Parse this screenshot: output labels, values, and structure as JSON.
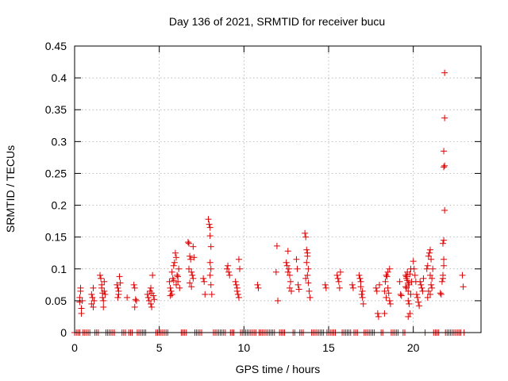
{
  "chart_data": {
    "type": "scatter",
    "title": "Day 136 of 2021, SRMTID for receiver bucu",
    "xlabel": "GPS time / hours",
    "ylabel": "SRMTID / TECUs",
    "xlim": [
      0,
      24
    ],
    "ylim": [
      0,
      0.45
    ],
    "xticks": [
      0,
      5,
      10,
      15,
      20
    ],
    "xtick_labels": [
      "0",
      "5",
      "10",
      "15",
      "20"
    ],
    "yticks": [
      0,
      0.05,
      0.1,
      0.15,
      0.2,
      0.25,
      0.3,
      0.35,
      0.4,
      0.45
    ],
    "ytick_labels": [
      "0",
      "0.05",
      "0.1",
      "0.15",
      "0.2",
      "0.25",
      "0.3",
      "0.35",
      "0.4",
      "0.45"
    ],
    "grid": true,
    "marker": "plus",
    "color": "#dd0000",
    "series": [
      {
        "name": "SRMTID",
        "points": [
          [
            0.3,
            0.048
          ],
          [
            0.3,
            0.055
          ],
          [
            0.35,
            0.065
          ],
          [
            0.35,
            0.07
          ],
          [
            0.4,
            0.038
          ],
          [
            0.4,
            0.03
          ],
          [
            0.45,
            0.05
          ],
          [
            1.0,
            0.06
          ],
          [
            1.0,
            0.045
          ],
          [
            1.05,
            0.055
          ],
          [
            1.1,
            0.07
          ],
          [
            1.1,
            0.04
          ],
          [
            1.15,
            0.05
          ],
          [
            1.5,
            0.09
          ],
          [
            1.55,
            0.085
          ],
          [
            1.6,
            0.07
          ],
          [
            1.6,
            0.075
          ],
          [
            1.65,
            0.062
          ],
          [
            1.65,
            0.055
          ],
          [
            1.7,
            0.05
          ],
          [
            1.7,
            0.04
          ],
          [
            1.75,
            0.065
          ],
          [
            1.8,
            0.06
          ],
          [
            1.75,
            0.08
          ],
          [
            2.5,
            0.075
          ],
          [
            2.55,
            0.07
          ],
          [
            2.6,
            0.06
          ],
          [
            2.65,
            0.088
          ],
          [
            2.6,
            0.065
          ],
          [
            2.7,
            0.078
          ],
          [
            2.55,
            0.055
          ],
          [
            3.1,
            0.055
          ],
          [
            3.5,
            0.075
          ],
          [
            3.55,
            0.07
          ],
          [
            3.6,
            0.052
          ],
          [
            3.65,
            0.05
          ],
          [
            3.55,
            0.04
          ],
          [
            4.3,
            0.06
          ],
          [
            4.35,
            0.055
          ],
          [
            4.4,
            0.05
          ],
          [
            4.45,
            0.065
          ],
          [
            4.5,
            0.07
          ],
          [
            4.55,
            0.04
          ],
          [
            4.6,
            0.09
          ],
          [
            4.5,
            0.045
          ],
          [
            4.65,
            0.058
          ],
          [
            4.7,
            0.052
          ],
          [
            4.55,
            0.062
          ],
          [
            5.6,
            0.08
          ],
          [
            5.65,
            0.07
          ],
          [
            5.7,
            0.065
          ],
          [
            5.75,
            0.095
          ],
          [
            5.8,
            0.085
          ],
          [
            5.85,
            0.105
          ],
          [
            5.9,
            0.11
          ],
          [
            5.95,
            0.125
          ],
          [
            6.0,
            0.118
          ],
          [
            6.05,
            0.09
          ],
          [
            6.1,
            0.08
          ],
          [
            6.15,
            0.1
          ],
          [
            5.65,
            0.058
          ],
          [
            5.75,
            0.06
          ],
          [
            6.0,
            0.075
          ],
          [
            6.1,
            0.088
          ],
          [
            6.2,
            0.07
          ],
          [
            5.85,
            0.082
          ],
          [
            6.7,
            0.142
          ],
          [
            6.75,
            0.14
          ],
          [
            6.8,
            0.12
          ],
          [
            6.85,
            0.115
          ],
          [
            6.9,
            0.095
          ],
          [
            6.95,
            0.09
          ],
          [
            7.0,
            0.135
          ],
          [
            7.05,
            0.118
          ],
          [
            6.8,
            0.078
          ],
          [
            6.9,
            0.072
          ],
          [
            7.0,
            0.085
          ],
          [
            6.75,
            0.1
          ],
          [
            7.6,
            0.085
          ],
          [
            7.65,
            0.08
          ],
          [
            7.7,
            0.06
          ],
          [
            7.9,
            0.178
          ],
          [
            7.95,
            0.17
          ],
          [
            8.0,
            0.165
          ],
          [
            8.0,
            0.152
          ],
          [
            8.05,
            0.135
          ],
          [
            8.0,
            0.11
          ],
          [
            8.05,
            0.1
          ],
          [
            8.0,
            0.09
          ],
          [
            8.05,
            0.075
          ],
          [
            8.1,
            0.06
          ],
          [
            9.0,
            0.1
          ],
          [
            9.05,
            0.105
          ],
          [
            9.1,
            0.095
          ],
          [
            9.15,
            0.09
          ],
          [
            9.5,
            0.08
          ],
          [
            9.55,
            0.075
          ],
          [
            9.6,
            0.065
          ],
          [
            9.65,
            0.06
          ],
          [
            9.7,
            0.115
          ],
          [
            9.75,
            0.1
          ],
          [
            9.6,
            0.07
          ],
          [
            9.7,
            0.055
          ],
          [
            10.8,
            0.075
          ],
          [
            10.85,
            0.07
          ],
          [
            11.9,
            0.095
          ],
          [
            11.95,
            0.136
          ],
          [
            12.0,
            0.05
          ],
          [
            12.5,
            0.11
          ],
          [
            12.55,
            0.105
          ],
          [
            12.6,
            0.128
          ],
          [
            12.65,
            0.1
          ],
          [
            12.7,
            0.09
          ],
          [
            12.75,
            0.08
          ],
          [
            12.6,
            0.095
          ],
          [
            12.7,
            0.07
          ],
          [
            12.8,
            0.065
          ],
          [
            13.1,
            0.115
          ],
          [
            13.15,
            0.1
          ],
          [
            13.2,
            0.075
          ],
          [
            13.25,
            0.068
          ],
          [
            13.6,
            0.156
          ],
          [
            13.65,
            0.15
          ],
          [
            13.7,
            0.13
          ],
          [
            13.75,
            0.125
          ],
          [
            13.7,
            0.11
          ],
          [
            13.8,
            0.1
          ],
          [
            13.75,
            0.09
          ],
          [
            13.8,
            0.078
          ],
          [
            13.85,
            0.065
          ],
          [
            13.9,
            0.055
          ],
          [
            13.65,
            0.085
          ],
          [
            13.75,
            0.12
          ],
          [
            14.8,
            0.075
          ],
          [
            14.85,
            0.07
          ],
          [
            15.5,
            0.09
          ],
          [
            15.55,
            0.085
          ],
          [
            15.6,
            0.08
          ],
          [
            15.65,
            0.07
          ],
          [
            15.7,
            0.095
          ],
          [
            16.4,
            0.075
          ],
          [
            16.45,
            0.07
          ],
          [
            16.8,
            0.09
          ],
          [
            16.85,
            0.085
          ],
          [
            16.9,
            0.08
          ],
          [
            16.95,
            0.06
          ],
          [
            17.0,
            0.055
          ],
          [
            17.05,
            0.045
          ],
          [
            16.9,
            0.072
          ],
          [
            17.0,
            0.065
          ],
          [
            17.8,
            0.07
          ],
          [
            17.85,
            0.065
          ],
          [
            17.9,
            0.03
          ],
          [
            17.95,
            0.025
          ],
          [
            18.0,
            0.075
          ],
          [
            18.3,
            0.065
          ],
          [
            18.35,
            0.08
          ],
          [
            18.4,
            0.09
          ],
          [
            18.45,
            0.088
          ],
          [
            18.5,
            0.07
          ],
          [
            18.55,
            0.062
          ],
          [
            18.6,
            0.05
          ],
          [
            18.65,
            0.045
          ],
          [
            18.5,
            0.095
          ],
          [
            18.4,
            0.055
          ],
          [
            18.3,
            0.03
          ],
          [
            18.6,
            0.1
          ],
          [
            19.2,
            0.08
          ],
          [
            19.25,
            0.06
          ],
          [
            19.3,
            0.058
          ],
          [
            19.55,
            0.09
          ],
          [
            19.6,
            0.085
          ],
          [
            19.65,
            0.082
          ],
          [
            19.7,
            0.078
          ],
          [
            19.75,
            0.075
          ],
          [
            19.6,
            0.07
          ],
          [
            19.7,
            0.065
          ],
          [
            19.8,
            0.092
          ],
          [
            19.85,
            0.1
          ],
          [
            19.65,
            0.095
          ],
          [
            19.7,
            0.05
          ],
          [
            19.75,
            0.045
          ],
          [
            19.8,
            0.03
          ],
          [
            19.7,
            0.025
          ],
          [
            19.6,
            0.088
          ],
          [
            19.9,
            0.08
          ],
          [
            19.55,
            0.072
          ],
          [
            19.85,
            0.06
          ],
          [
            20.0,
            0.112
          ],
          [
            20.05,
            0.1
          ],
          [
            20.1,
            0.09
          ],
          [
            20.15,
            0.08
          ],
          [
            20.2,
            0.06
          ],
          [
            20.25,
            0.055
          ],
          [
            20.3,
            0.048
          ],
          [
            20.35,
            0.042
          ],
          [
            20.4,
            0.08
          ],
          [
            20.45,
            0.075
          ],
          [
            20.5,
            0.07
          ],
          [
            20.55,
            0.065
          ],
          [
            20.6,
            0.085
          ],
          [
            20.8,
            0.1
          ],
          [
            20.85,
            0.105
          ],
          [
            20.9,
            0.12
          ],
          [
            20.95,
            0.125
          ],
          [
            21.0,
            0.13
          ],
          [
            21.05,
            0.115
          ],
          [
            21.0,
            0.09
          ],
          [
            21.05,
            0.075
          ],
          [
            21.1,
            0.07
          ],
          [
            21.0,
            0.06
          ],
          [
            20.9,
            0.065
          ],
          [
            20.85,
            0.055
          ],
          [
            21.1,
            0.085
          ],
          [
            21.15,
            0.1
          ],
          [
            21.6,
            0.062
          ],
          [
            21.65,
            0.06
          ],
          [
            21.7,
            0.08
          ],
          [
            21.75,
            0.085
          ],
          [
            21.75,
            0.09
          ],
          [
            21.8,
            0.105
          ],
          [
            21.8,
            0.115
          ],
          [
            21.75,
            0.14
          ],
          [
            21.8,
            0.145
          ],
          [
            21.85,
            0.192
          ],
          [
            21.8,
            0.26
          ],
          [
            21.85,
            0.262
          ],
          [
            21.8,
            0.285
          ],
          [
            21.85,
            0.337
          ],
          [
            21.85,
            0.408
          ],
          [
            22.9,
            0.09
          ],
          [
            22.95,
            0.072
          ]
        ],
        "zero_ranges": [
          [
            0.0,
            0.3
          ],
          [
            0.5,
            0.9
          ],
          [
            1.2,
            1.4
          ],
          [
            1.85,
            2.4
          ],
          [
            2.8,
            3.0
          ],
          [
            3.2,
            3.4
          ],
          [
            3.7,
            4.2
          ],
          [
            4.8,
            5.5
          ],
          [
            6.3,
            6.6
          ],
          [
            7.1,
            7.5
          ],
          [
            8.2,
            8.9
          ],
          [
            9.2,
            9.4
          ],
          [
            9.8,
            10.7
          ],
          [
            10.9,
            11.8
          ],
          [
            12.1,
            12.4
          ],
          [
            12.9,
            13.0
          ],
          [
            13.3,
            13.5
          ],
          [
            14.0,
            14.7
          ],
          [
            14.9,
            15.4
          ],
          [
            15.8,
            16.3
          ],
          [
            16.5,
            16.7
          ],
          [
            17.1,
            17.7
          ],
          [
            18.1,
            18.2
          ],
          [
            18.7,
            19.1
          ],
          [
            19.4,
            19.5
          ],
          [
            20.7,
            20.75
          ],
          [
            21.2,
            21.5
          ],
          [
            21.9,
            22.8
          ],
          [
            23.0,
            23.0
          ]
        ]
      }
    ]
  }
}
